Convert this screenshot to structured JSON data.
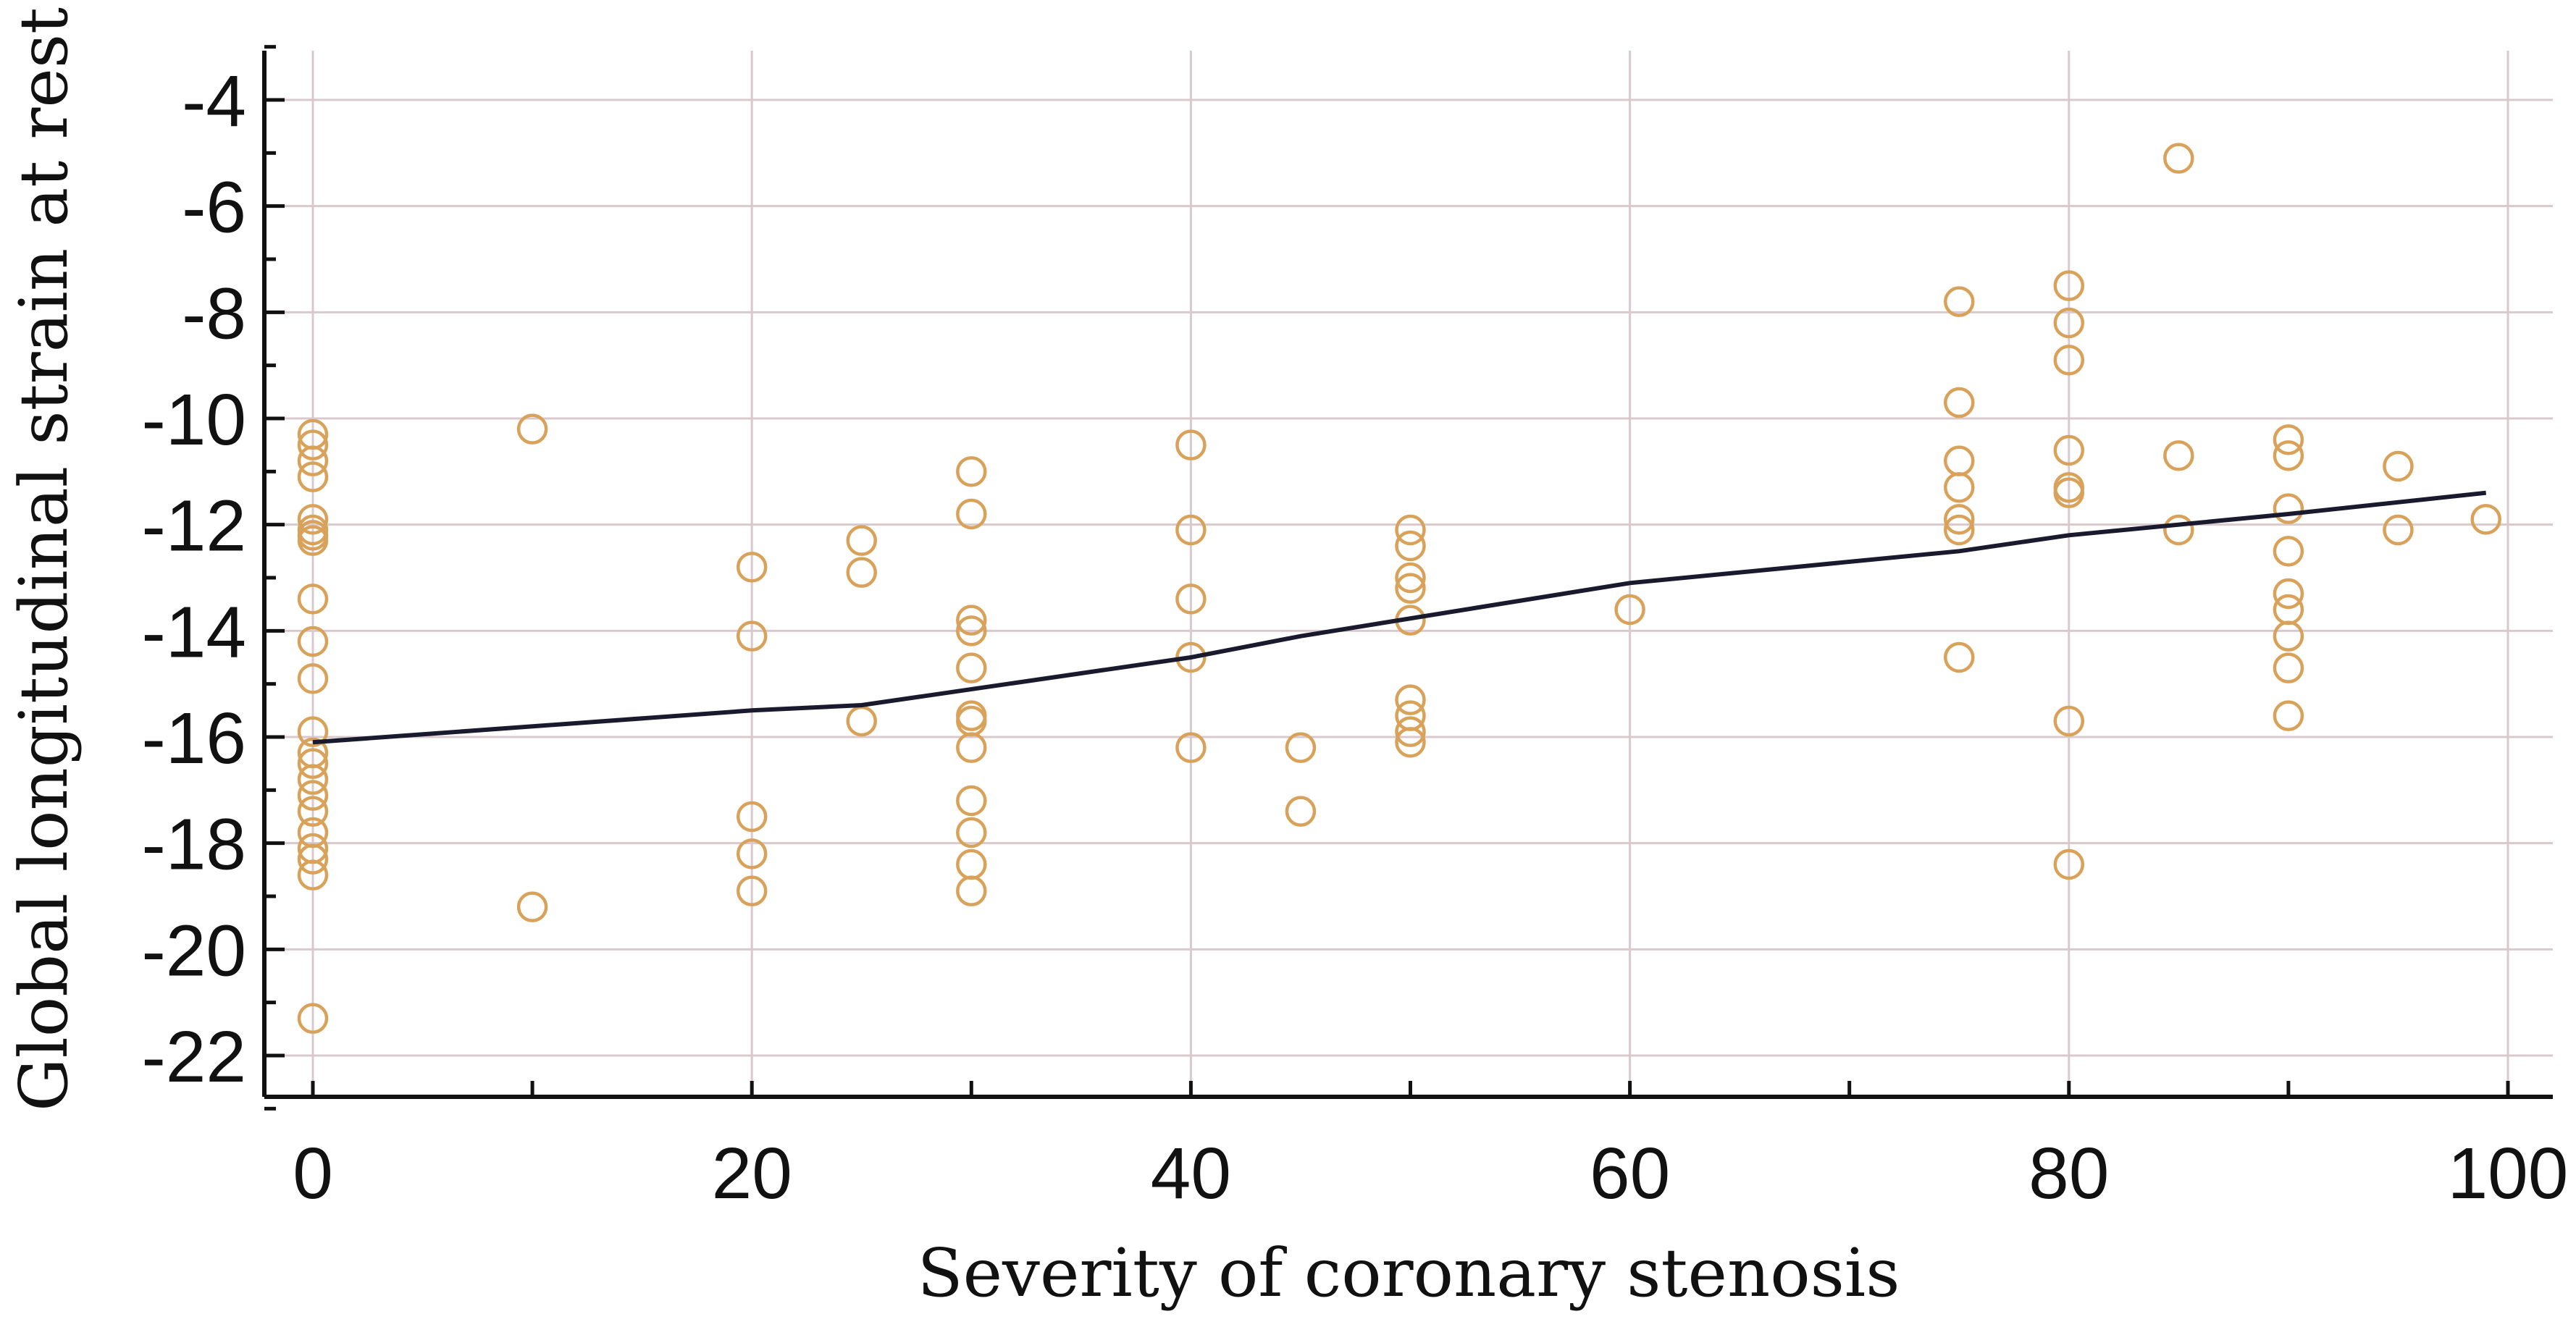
{
  "chart_data": {
    "type": "scatter",
    "title": "",
    "xlabel": "Severity of coronary stenosis",
    "ylabel": "Global longitudinal strain at rest",
    "xlim": [
      -2,
      102
    ],
    "ylim": [
      -23,
      -3
    ],
    "xticks": [
      0,
      20,
      40,
      60,
      80,
      100
    ],
    "yticks": [
      -4,
      -6,
      -8,
      -10,
      -12,
      -14,
      -16,
      -18,
      -20,
      -22
    ],
    "grid": true,
    "point_color": "#d9a25a",
    "line_color": "#1a1a2e",
    "points": [
      [
        0,
        -10.3
      ],
      [
        0,
        -10.5
      ],
      [
        0,
        -10.8
      ],
      [
        0,
        -11.1
      ],
      [
        0,
        -11.9
      ],
      [
        0,
        -12.1
      ],
      [
        0,
        -12.2
      ],
      [
        0,
        -12.3
      ],
      [
        0,
        -13.4
      ],
      [
        0,
        -14.2
      ],
      [
        0,
        -14.9
      ],
      [
        0,
        -15.9
      ],
      [
        0,
        -16.3
      ],
      [
        0,
        -16.5
      ],
      [
        0,
        -16.8
      ],
      [
        0,
        -17.1
      ],
      [
        0,
        -17.4
      ],
      [
        0,
        -17.8
      ],
      [
        0,
        -18.1
      ],
      [
        0,
        -18.3
      ],
      [
        0,
        -18.6
      ],
      [
        0,
        -21.3
      ],
      [
        10,
        -10.2
      ],
      [
        10,
        -19.2
      ],
      [
        20,
        -12.8
      ],
      [
        20,
        -14.1
      ],
      [
        20,
        -17.5
      ],
      [
        20,
        -18.2
      ],
      [
        20,
        -18.9
      ],
      [
        25,
        -12.3
      ],
      [
        25,
        -12.9
      ],
      [
        25,
        -15.7
      ],
      [
        30,
        -11.0
      ],
      [
        30,
        -11.8
      ],
      [
        30,
        -13.8
      ],
      [
        30,
        -14.0
      ],
      [
        30,
        -14.7
      ],
      [
        30,
        -15.6
      ],
      [
        30,
        -15.7
      ],
      [
        30,
        -16.2
      ],
      [
        30,
        -17.2
      ],
      [
        30,
        -17.8
      ],
      [
        30,
        -18.4
      ],
      [
        30,
        -18.9
      ],
      [
        40,
        -10.5
      ],
      [
        40,
        -12.1
      ],
      [
        40,
        -13.4
      ],
      [
        40,
        -14.5
      ],
      [
        40,
        -16.2
      ],
      [
        45,
        -16.2
      ],
      [
        45,
        -17.4
      ],
      [
        50,
        -12.1
      ],
      [
        50,
        -12.4
      ],
      [
        50,
        -13.0
      ],
      [
        50,
        -13.2
      ],
      [
        50,
        -13.8
      ],
      [
        50,
        -15.3
      ],
      [
        50,
        -15.6
      ],
      [
        50,
        -15.9
      ],
      [
        50,
        -16.1
      ],
      [
        60,
        -13.6
      ],
      [
        75,
        -7.8
      ],
      [
        75,
        -9.7
      ],
      [
        75,
        -10.8
      ],
      [
        75,
        -11.3
      ],
      [
        75,
        -11.9
      ],
      [
        75,
        -12.1
      ],
      [
        75,
        -14.5
      ],
      [
        80,
        -7.5
      ],
      [
        80,
        -8.2
      ],
      [
        80,
        -8.9
      ],
      [
        80,
        -10.6
      ],
      [
        80,
        -11.3
      ],
      [
        80,
        -11.4
      ],
      [
        80,
        -15.7
      ],
      [
        80,
        -18.4
      ],
      [
        85,
        -5.1
      ],
      [
        85,
        -10.7
      ],
      [
        85,
        -12.1
      ],
      [
        90,
        -10.4
      ],
      [
        90,
        -10.7
      ],
      [
        90,
        -11.7
      ],
      [
        90,
        -12.5
      ],
      [
        90,
        -13.3
      ],
      [
        90,
        -13.6
      ],
      [
        90,
        -14.1
      ],
      [
        90,
        -14.7
      ],
      [
        90,
        -15.6
      ],
      [
        95,
        -10.9
      ],
      [
        95,
        -12.1
      ],
      [
        99,
        -11.9
      ]
    ],
    "fit_line": {
      "x": [
        0,
        20,
        25,
        40,
        45,
        60,
        75,
        80,
        90,
        99
      ],
      "y": [
        -16.1,
        -15.5,
        -15.4,
        -14.5,
        -14.1,
        -13.1,
        -12.5,
        -12.2,
        -11.8,
        -11.4
      ]
    }
  }
}
